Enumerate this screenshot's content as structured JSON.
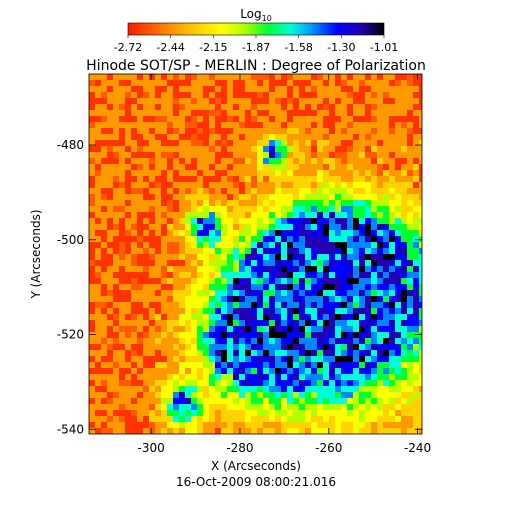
{
  "chart_data": {
    "type": "heatmap",
    "title": "Hinode SOT/SP - MERLIN : Degree of Polarization",
    "subtitle": "16-Oct-2009 08:00:21.016",
    "xlabel": "X (Arcseconds)",
    "ylabel": "Y (Arcseconds)",
    "xlim": [
      -314,
      -239
    ],
    "ylim": [
      -541,
      -465
    ],
    "xticks": [
      "-300",
      "-280",
      "-260",
      "-240"
    ],
    "xtick_values": [
      -300,
      -280,
      -260,
      -240
    ],
    "yticks": [
      "-480",
      "-500",
      "-520",
      "-540"
    ],
    "ytick_values": [
      -480,
      -500,
      -520,
      -540
    ],
    "colorbar": {
      "label_base": "Log",
      "label_sub": "10",
      "tick_labels": [
        "-2.72",
        "-2.44",
        "-2.15",
        "-1.87",
        "-1.58",
        "-1.30",
        "-1.01"
      ],
      "range": [
        -2.72,
        -1.01
      ],
      "colors": [
        "#ff1a00",
        "#ff5a00",
        "#ff9900",
        "#ffd200",
        "#ffff00",
        "#b4ff00",
        "#00ff33",
        "#00ffd8",
        "#0087ff",
        "#0000ff",
        "#2400b4",
        "#000000"
      ]
    },
    "strong_region_description": "background mostly in the lowest range (red/orange), with a high-polarization patch concentrated in the lower right quadrant",
    "grid": false
  }
}
